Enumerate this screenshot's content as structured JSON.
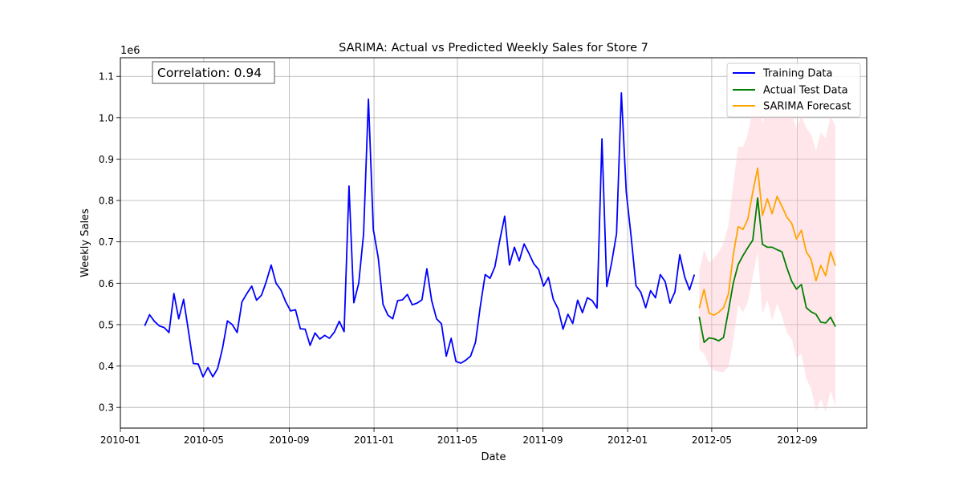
{
  "chart_data": {
    "type": "line",
    "title": "SARIMA: Actual vs Predicted Weekly Sales for Store 7",
    "xlabel": "Date",
    "ylabel": "Weekly Sales",
    "y_offset_label": "1e6",
    "xlim": [
      "2010-01-01",
      "2012-12-10"
    ],
    "ylim": [
      0.25,
      1.145
    ],
    "y_ticks": [
      0.3,
      0.4,
      0.5,
      0.6,
      0.7,
      0.8,
      0.9,
      1.0,
      1.1
    ],
    "y_tick_labels": [
      "0.3",
      "0.4",
      "0.5",
      "0.6",
      "0.7",
      "0.8",
      "0.9",
      "1.0",
      "1.1"
    ],
    "x_ticks": [
      "2010-01-01",
      "2010-05-01",
      "2010-09-01",
      "2011-01-01",
      "2011-05-01",
      "2011-09-01",
      "2012-01-01",
      "2012-05-01",
      "2012-09-01"
    ],
    "x_tick_labels": [
      "2010-01",
      "2010-05",
      "2010-09",
      "2011-01",
      "2011-05",
      "2011-09",
      "2012-01",
      "2012-05",
      "2012-09"
    ],
    "grid": true,
    "legend_position": "upper-right",
    "annotation": "Correlation: 0.94",
    "annotation_color": "#8b0000",
    "series": [
      {
        "name": "Training Data",
        "color": "#0000ff",
        "start": "2010-02-05",
        "step_days": 7,
        "values": [
          0.497,
          0.524,
          0.508,
          0.497,
          0.493,
          0.481,
          0.575,
          0.514,
          0.561,
          0.484,
          0.406,
          0.405,
          0.374,
          0.396,
          0.374,
          0.394,
          0.443,
          0.509,
          0.5,
          0.481,
          0.555,
          0.575,
          0.593,
          0.559,
          0.571,
          0.604,
          0.644,
          0.6,
          0.584,
          0.555,
          0.533,
          0.536,
          0.49,
          0.489,
          0.45,
          0.48,
          0.465,
          0.474,
          0.467,
          0.482,
          0.508,
          0.483,
          0.835,
          0.553,
          0.6,
          0.72,
          1.045,
          0.73,
          0.662,
          0.549,
          0.523,
          0.514,
          0.558,
          0.56,
          0.573,
          0.548,
          0.552,
          0.56,
          0.635,
          0.558,
          0.514,
          0.502,
          0.424,
          0.467,
          0.411,
          0.407,
          0.414,
          0.424,
          0.457,
          0.544,
          0.621,
          0.612,
          0.64,
          0.704,
          0.762,
          0.644,
          0.687,
          0.654,
          0.695,
          0.672,
          0.647,
          0.633,
          0.593,
          0.614,
          0.561,
          0.538,
          0.489,
          0.525,
          0.503,
          0.559,
          0.529,
          0.565,
          0.558,
          0.54,
          0.949,
          0.592,
          0.65,
          0.72,
          1.06,
          0.82,
          0.712,
          0.594,
          0.578,
          0.541,
          0.582,
          0.565,
          0.621,
          0.604,
          0.552,
          0.579,
          0.669,
          0.616,
          0.584,
          0.621
        ]
      },
      {
        "name": "Actual Test Data",
        "color": "#008000",
        "start": "2012-04-13",
        "step_days": 7,
        "values": [
          0.519,
          0.457,
          0.468,
          0.466,
          0.461,
          0.469,
          0.533,
          0.6,
          0.645,
          0.667,
          0.686,
          0.704,
          0.806,
          0.694,
          0.687,
          0.687,
          0.681,
          0.676,
          0.638,
          0.605,
          0.586,
          0.597,
          0.541,
          0.531,
          0.525,
          0.506,
          0.504,
          0.518,
          0.495
        ]
      },
      {
        "name": "SARIMA Forecast",
        "color": "#ffa500",
        "start": "2012-04-13",
        "step_days": 7,
        "values": [
          0.54,
          0.585,
          0.528,
          0.523,
          0.53,
          0.541,
          0.574,
          0.668,
          0.737,
          0.73,
          0.755,
          0.82,
          0.878,
          0.764,
          0.804,
          0.768,
          0.81,
          0.786,
          0.76,
          0.745,
          0.707,
          0.728,
          0.676,
          0.658,
          0.606,
          0.643,
          0.618,
          0.676,
          0.642
        ]
      }
    ],
    "confidence_band": {
      "color": "#ffc0cb",
      "opacity": 0.4,
      "start": "2012-04-13",
      "step_days": 7,
      "lower": [
        0.44,
        0.43,
        0.4,
        0.39,
        0.386,
        0.385,
        0.398,
        0.46,
        0.548,
        0.53,
        0.555,
        0.616,
        0.675,
        0.525,
        0.56,
        0.51,
        0.55,
        0.521,
        0.48,
        0.465,
        0.42,
        0.43,
        0.37,
        0.345,
        0.292,
        0.32,
        0.29,
        0.34,
        0.302
      ],
      "upper": [
        0.63,
        0.68,
        0.65,
        0.66,
        0.675,
        0.697,
        0.74,
        0.84,
        0.93,
        0.93,
        0.96,
        1.025,
        1.085,
        0.985,
        1.035,
        1.005,
        1.055,
        1.04,
        1.015,
        1.01,
        0.975,
        1.005,
        0.975,
        0.96,
        0.92,
        0.965,
        0.95,
        1.005,
        0.98
      ]
    }
  }
}
